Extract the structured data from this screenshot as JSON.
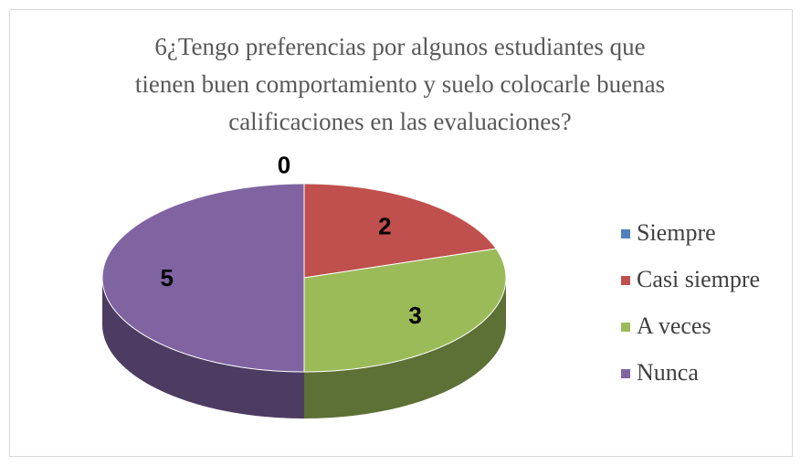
{
  "chart_data": {
    "type": "pie3d",
    "title": [
      "6¿Tengo preferencias por algunos estudiantes que",
      "tienen buen comportamiento y suelo colocarle buenas",
      "calificaciones en las evaluaciones?"
    ],
    "categories": [
      "Siempre",
      "Casi siempre",
      "A veces",
      "Nunca"
    ],
    "values": [
      0,
      2,
      3,
      5
    ],
    "colors": [
      "#4f81bd",
      "#c0504d",
      "#9bbb59",
      "#8064a2"
    ],
    "legend": "right"
  }
}
